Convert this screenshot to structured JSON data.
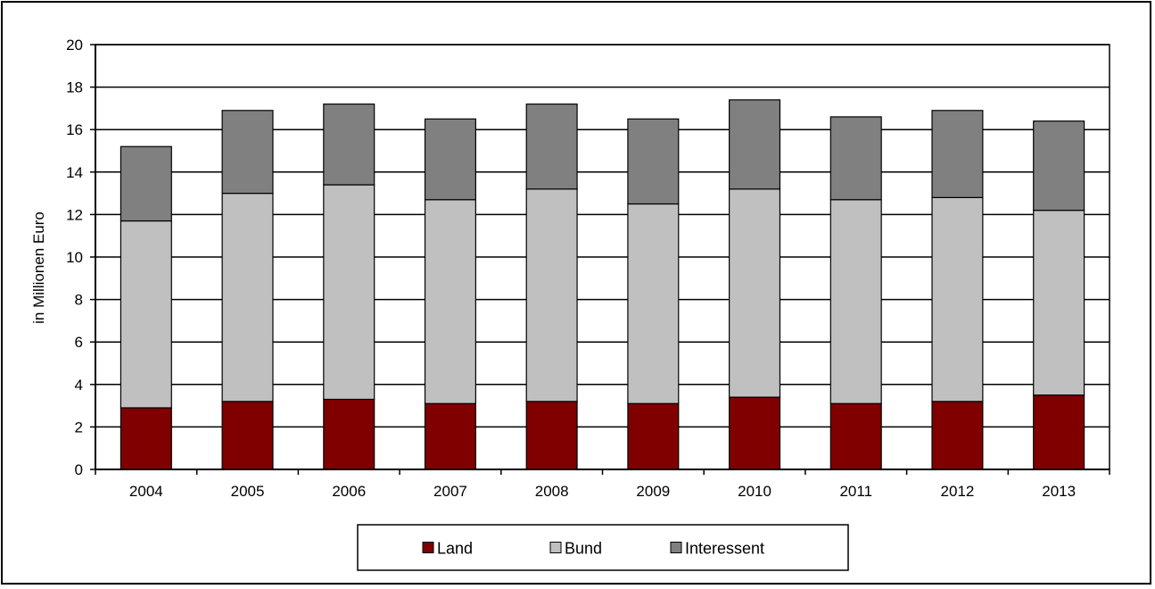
{
  "chart_data": {
    "type": "bar",
    "stacked": true,
    "title": "",
    "xlabel": "",
    "ylabel": "in Millionen Euro",
    "ylim": [
      0,
      20
    ],
    "yticks": [
      0,
      2,
      4,
      6,
      8,
      10,
      12,
      14,
      16,
      18,
      20
    ],
    "grid": true,
    "legend_position": "bottom",
    "categories": [
      "2004",
      "2005",
      "2006",
      "2007",
      "2008",
      "2009",
      "2010",
      "2011",
      "2012",
      "2013"
    ],
    "series": [
      {
        "name": "Land",
        "color": "#800000",
        "values": [
          2.9,
          3.2,
          3.3,
          3.1,
          3.2,
          3.1,
          3.4,
          3.1,
          3.2,
          3.5
        ]
      },
      {
        "name": "Bund",
        "color": "#c0c0c0",
        "values": [
          8.8,
          9.8,
          10.1,
          9.6,
          10.0,
          9.4,
          9.8,
          9.6,
          9.6,
          8.7
        ]
      },
      {
        "name": "Interessent",
        "color": "#808080",
        "values": [
          3.5,
          3.9,
          3.8,
          3.8,
          4.0,
          4.0,
          4.2,
          3.9,
          4.1,
          4.2
        ]
      }
    ]
  }
}
